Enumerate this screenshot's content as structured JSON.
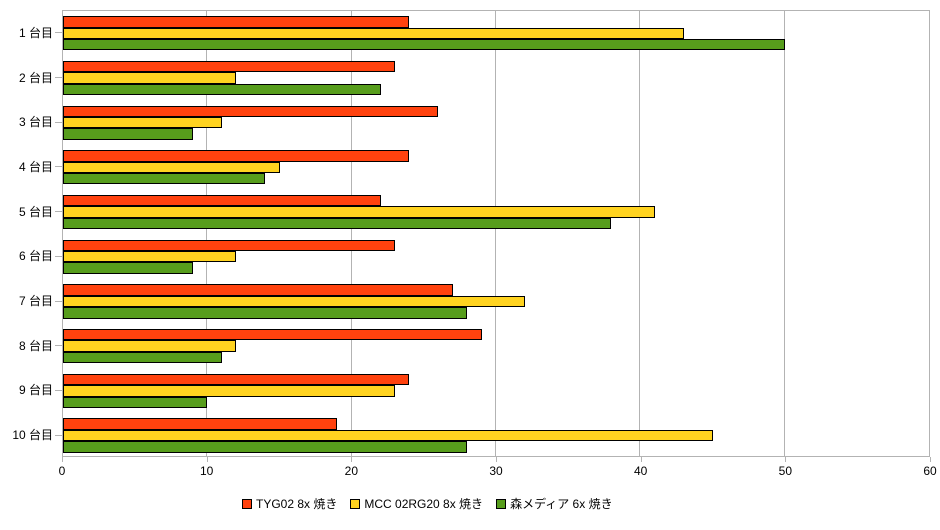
{
  "chart_data": {
    "type": "bar",
    "orientation": "horizontal",
    "title": "",
    "xlabel": "",
    "ylabel": "",
    "categories": [
      "1 台目",
      "2 台目",
      "3 台目",
      "4 台目",
      "5 台目",
      "6 台目",
      "7 台目",
      "8 台目",
      "9 台目",
      "10 台目"
    ],
    "series": [
      {
        "name": "TYG02 8x 焼き",
        "color": "#FF420E",
        "values": [
          24,
          23,
          26,
          24,
          22,
          23,
          27,
          29,
          24,
          19
        ]
      },
      {
        "name": "MCC 02RG20 8x 焼き",
        "color": "#FFD320",
        "values": [
          43,
          12,
          11,
          15,
          41,
          12,
          32,
          12,
          23,
          45
        ]
      },
      {
        "name": "森メディア 6x 焼き",
        "color": "#579D1C",
        "values": [
          50,
          22,
          9,
          14,
          38,
          9,
          28,
          11,
          10,
          28
        ]
      }
    ],
    "xlim": [
      0,
      60
    ],
    "xticks": [
      "0",
      "10",
      "20",
      "30",
      "40",
      "50",
      "60"
    ],
    "grid": true,
    "legend_position": "bottom"
  },
  "colors": {
    "grid": "#b3b3b3",
    "bar_border": "#000000",
    "background": "#ffffff",
    "text": "#000000"
  }
}
